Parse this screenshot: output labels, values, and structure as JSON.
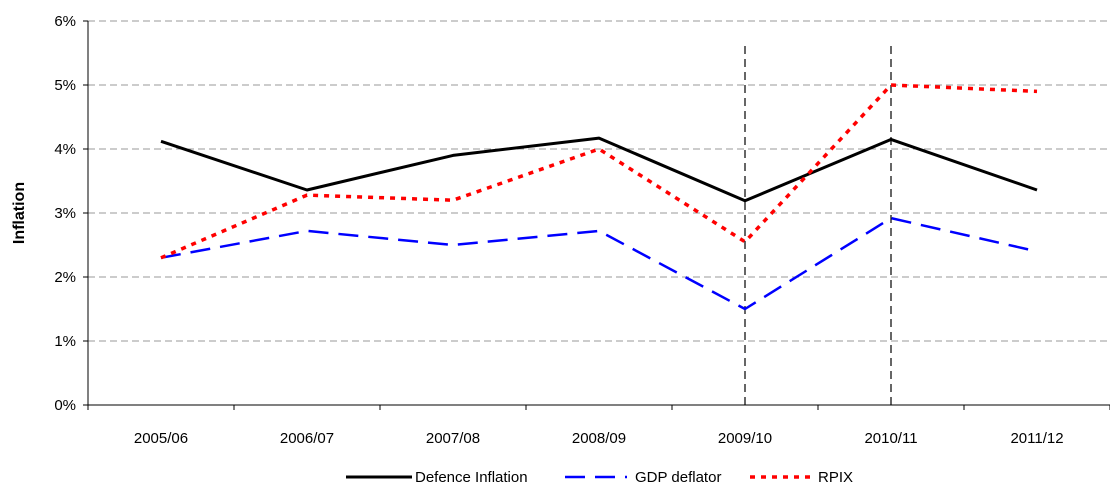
{
  "chart_data": {
    "type": "line",
    "title": "",
    "xlabel": "",
    "ylabel": "Inflation",
    "categories": [
      "2005/06",
      "2006/07",
      "2007/08",
      "2008/09",
      "2009/10",
      "2010/11",
      "2011/12"
    ],
    "ylim": [
      0,
      6
    ],
    "yticks": [
      0,
      1,
      2,
      3,
      4,
      5,
      6
    ],
    "ytick_labels": [
      "0%",
      "1%",
      "2%",
      "3%",
      "4%",
      "5%",
      "6%"
    ],
    "grid": "horizontal dashed",
    "legend_position": "bottom",
    "vertical_markers": [
      "2009/10",
      "2010/11"
    ],
    "series": [
      {
        "name": "Defence Inflation",
        "values": [
          4.12,
          3.36,
          3.9,
          4.17,
          3.19,
          4.15,
          3.36
        ],
        "color": "#000000",
        "style": "solid"
      },
      {
        "name": "GDP deflator",
        "values": [
          2.3,
          2.72,
          2.5,
          2.72,
          1.5,
          2.92,
          2.4
        ],
        "color": "#0000ff",
        "style": "dashed"
      },
      {
        "name": "RPIX",
        "values": [
          2.3,
          3.28,
          3.2,
          4.0,
          2.55,
          5.0,
          4.9
        ],
        "color": "#ff0000",
        "style": "dotted"
      }
    ]
  }
}
